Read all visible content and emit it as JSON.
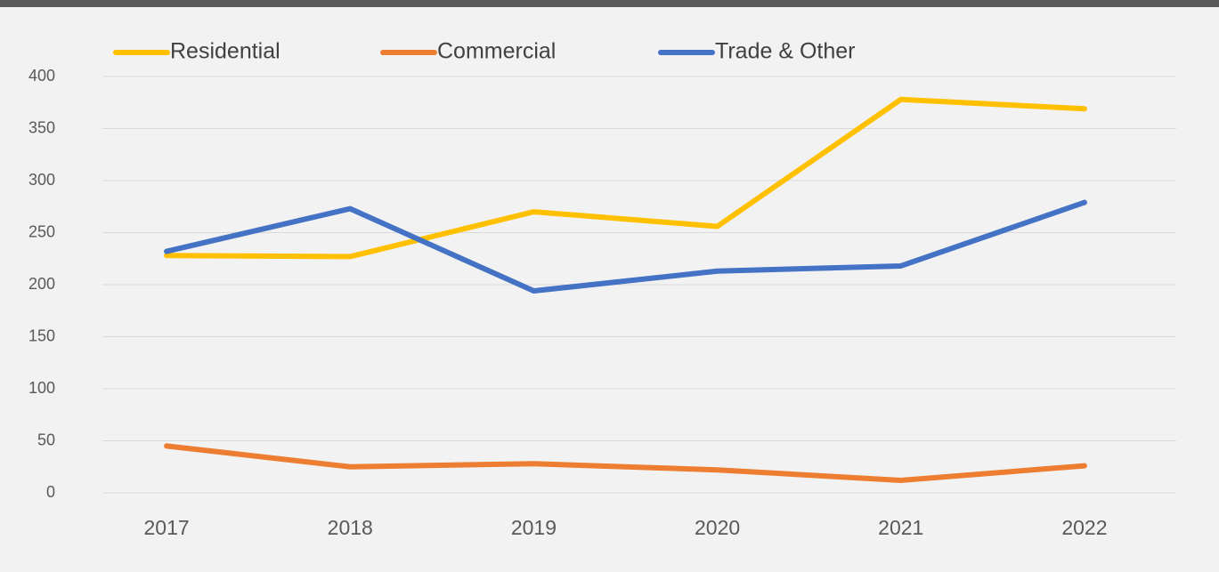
{
  "chart_data": {
    "type": "line",
    "categories": [
      "2017",
      "2018",
      "2019",
      "2020",
      "2021",
      "2022"
    ],
    "series": [
      {
        "name": "Residential",
        "color": "#ffc000",
        "values": [
          228,
          227,
          270,
          256,
          378,
          369
        ]
      },
      {
        "name": "Commercial",
        "color": "#ed7d31",
        "values": [
          45,
          25,
          28,
          22,
          12,
          26
        ]
      },
      {
        "name": "Trade & Other",
        "color": "#4472c4",
        "values": [
          232,
          273,
          194,
          213,
          218,
          279
        ]
      }
    ],
    "ylim": [
      0,
      400
    ],
    "yticks": [
      0,
      50,
      100,
      150,
      200,
      250,
      300,
      350,
      400
    ],
    "grid": true,
    "legend": "top"
  }
}
